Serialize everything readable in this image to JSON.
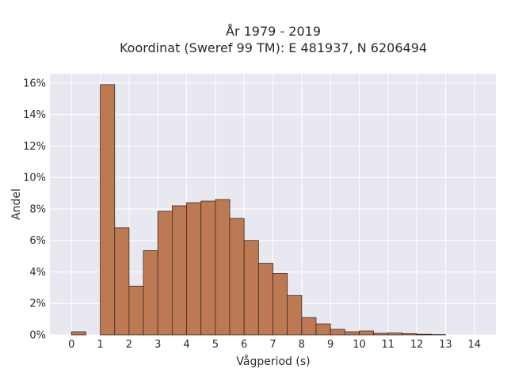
{
  "chart_data": {
    "type": "bar",
    "title_line1": "År 1979 - 2019",
    "title_line2": "Koordinat (Sweref 99 TM): E 481937, N 6206494",
    "xlabel": "Vågperiod (s)",
    "ylabel": "Andel",
    "xlim": [
      -0.75,
      14.75
    ],
    "ylim": [
      0,
      16.6
    ],
    "bin_width": 0.5,
    "x_ticks": [
      "0",
      "1",
      "2",
      "3",
      "4",
      "5",
      "6",
      "7",
      "8",
      "9",
      "10",
      "11",
      "12",
      "13",
      "14"
    ],
    "y_ticks": [
      "0%",
      "2%",
      "4%",
      "6%",
      "8%",
      "10%",
      "12%",
      "14%",
      "16%"
    ],
    "bars": [
      {
        "x0": 0.0,
        "value": 0.2
      },
      {
        "x0": 1.0,
        "value": 15.9
      },
      {
        "x0": 1.5,
        "value": 6.8
      },
      {
        "x0": 2.0,
        "value": 3.1
      },
      {
        "x0": 2.5,
        "value": 5.35
      },
      {
        "x0": 3.0,
        "value": 7.85
      },
      {
        "x0": 3.5,
        "value": 8.2
      },
      {
        "x0": 4.0,
        "value": 8.4
      },
      {
        "x0": 4.5,
        "value": 8.5
      },
      {
        "x0": 5.0,
        "value": 8.6
      },
      {
        "x0": 5.5,
        "value": 7.4
      },
      {
        "x0": 6.0,
        "value": 6.0
      },
      {
        "x0": 6.5,
        "value": 4.55
      },
      {
        "x0": 7.0,
        "value": 3.9
      },
      {
        "x0": 7.5,
        "value": 2.5
      },
      {
        "x0": 8.0,
        "value": 1.1
      },
      {
        "x0": 8.5,
        "value": 0.7
      },
      {
        "x0": 9.0,
        "value": 0.35
      },
      {
        "x0": 9.5,
        "value": 0.2
      },
      {
        "x0": 10.0,
        "value": 0.25
      },
      {
        "x0": 10.5,
        "value": 0.1
      },
      {
        "x0": 11.0,
        "value": 0.12
      },
      {
        "x0": 11.5,
        "value": 0.08
      },
      {
        "x0": 12.0,
        "value": 0.04
      },
      {
        "x0": 12.5,
        "value": 0.02
      }
    ],
    "bar_color": "#bd7a52",
    "background_color": "#e8e8f0",
    "grid": true
  }
}
